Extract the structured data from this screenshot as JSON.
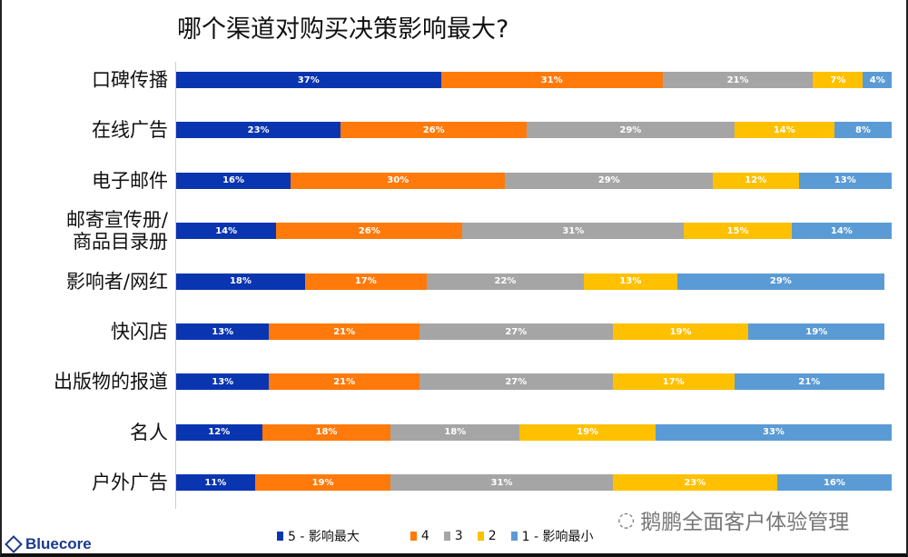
{
  "chart_data": {
    "type": "bar",
    "orientation": "horizontal",
    "stacked": true,
    "title": "哪个渠道对购买决策影响最大?",
    "categories": [
      "口碑传播",
      "在线广告",
      "电子邮件",
      "邮寄宣传册/\n商品目录册",
      "影响者/网红",
      "快闪店",
      "出版物的报道",
      "名人",
      "户外广告"
    ],
    "series": [
      {
        "name": "5 - 影响最大",
        "color": "#0a35b0",
        "values": [
          37,
          23,
          16,
          14,
          18,
          13,
          13,
          12,
          11
        ]
      },
      {
        "name": "4",
        "color": "#ff7a0a",
        "values": [
          31,
          26,
          30,
          26,
          17,
          21,
          21,
          18,
          19
        ]
      },
      {
        "name": "3",
        "color": "#a5a5a5",
        "values": [
          21,
          29,
          29,
          31,
          22,
          27,
          27,
          18,
          31
        ]
      },
      {
        "name": "2",
        "color": "#ffc000",
        "values": [
          7,
          14,
          12,
          15,
          13,
          19,
          17,
          19,
          23
        ]
      },
      {
        "name": "1 - 影响最小",
        "color": "#5b9bd5",
        "values": [
          4,
          8,
          13,
          14,
          29,
          19,
          21,
          33,
          16
        ]
      }
    ],
    "value_format": "{v}%",
    "legend_position": "bottom",
    "grid": false
  },
  "logo": "Bluecore",
  "watermark": "鹅鹏全面客户体验管理"
}
